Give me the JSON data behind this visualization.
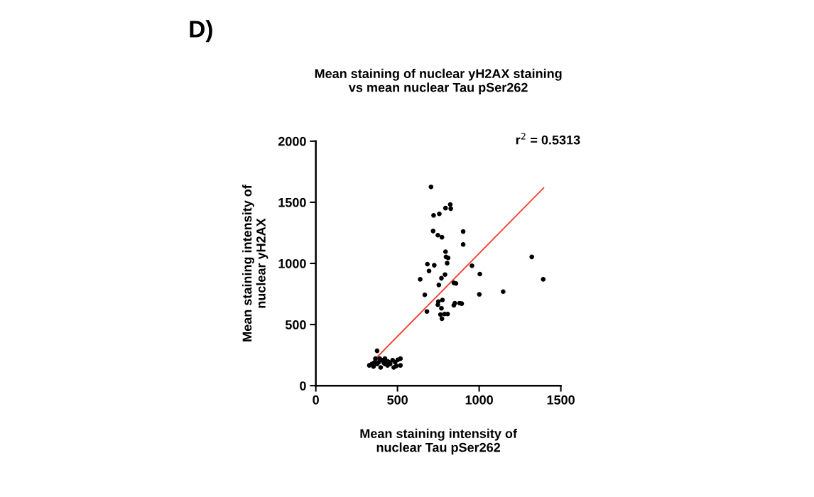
{
  "chart_data": {
    "type": "scatter",
    "title": "Mean staining of nuclear yH2AX staining\nvs mean nuclear Tau pSer262",
    "xlabel": "Mean staining intensity of\nnuclear Tau pSer262",
    "ylabel": "Mean staining intensity of\nnuclear yH2AX",
    "annotations": [
      "D)",
      "r$^{2}$ = 0.5313"
    ],
    "xlim": [
      0,
      1500
    ],
    "ylim": [
      0,
      2000
    ],
    "xticks": [
      0,
      500,
      1000,
      1500
    ],
    "yticks": [
      0,
      500,
      1000,
      1500,
      2000
    ],
    "grid": false,
    "legend": false,
    "marker": "circle",
    "series": [
      {
        "color": "#000000",
        "x": [
          705,
          721,
          756,
          794,
          823,
          826,
          718,
          747,
          772,
          902,
          902,
          683,
          693,
          725,
          794,
          797,
          810,
          804,
          791,
          753,
          769,
          639,
          667,
          680,
          845,
          858,
          956,
          1004,
          1001,
          1147,
          1322,
          1392,
          750,
          747,
          775,
          769,
          763,
          772,
          788,
          807,
          851,
          845,
          880,
          893,
          375,
          327,
          343,
          359,
          365,
          391,
          407,
          423,
          439,
          455,
          470,
          486,
          502,
          518,
          518,
          477,
          439,
          397,
          375,
          416,
          448,
          384,
          353,
          493,
          423
        ],
        "values": [
          1626,
          1393,
          1405,
          1452,
          1482,
          1448,
          1265,
          1231,
          1214,
          1261,
          1155,
          994,
          938,
          985,
          1096,
          1053,
          1045,
          1002,
          909,
          824,
          879,
          870,
          743,
          607,
          841,
          836,
          981,
          913,
          747,
          769,
          1053,
          870,
          688,
          662,
          701,
          633,
          582,
          548,
          586,
          586,
          675,
          658,
          675,
          671,
          285,
          166,
          178,
          191,
          221,
          221,
          208,
          221,
          200,
          178,
          208,
          191,
          212,
          221,
          166,
          149,
          166,
          149,
          178,
          187,
          191,
          191,
          157,
          161,
          178
        ]
      },
      {
        "type": "line",
        "color": "#f03c2a",
        "line_style": "solid",
        "marker": "none",
        "x": [
          359,
          1395
        ],
        "values": [
          212,
          1618
        ]
      }
    ]
  }
}
